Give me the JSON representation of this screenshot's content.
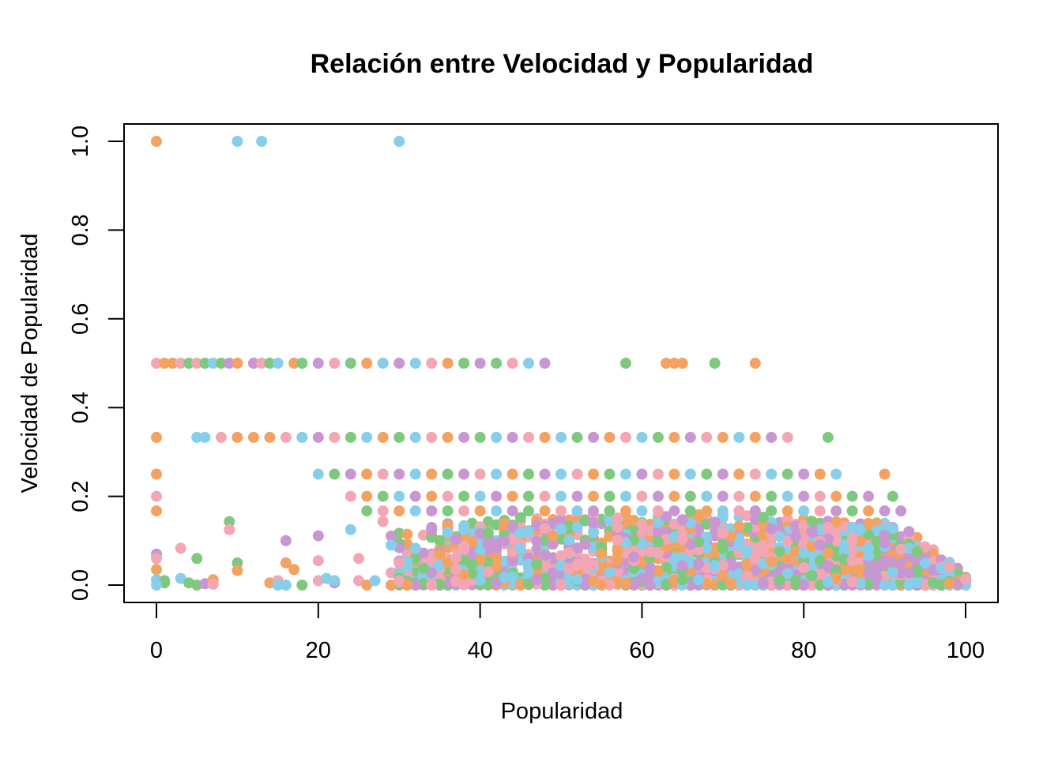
{
  "chart_data": {
    "type": "scatter",
    "title": "Relación entre Velocidad y Popularidad",
    "xlabel": "Popularidad",
    "ylabel": "Velocidad de Popularidad",
    "xlim": [
      0,
      100
    ],
    "ylim": [
      0,
      1.0
    ],
    "x_ticks": [
      "0",
      "20",
      "40",
      "60",
      "80",
      "100"
    ],
    "y_ticks": [
      "0.0",
      "0.2",
      "0.4",
      "0.6",
      "0.8",
      "1.0"
    ],
    "grid": false,
    "legend": "none",
    "colors": [
      "#F4A261",
      "#87CEEB",
      "#7FC97F",
      "#C896D2",
      "#F4A6B4"
    ],
    "points": [
      {
        "x": 0,
        "y": 1.0,
        "c": 0
      },
      {
        "x": 10,
        "y": 1.0,
        "c": 1
      },
      {
        "x": 13,
        "y": 1.0,
        "c": 1
      },
      {
        "x": 30,
        "y": 1.0,
        "c": 1
      },
      {
        "x": 0,
        "y": 0.5,
        "c": 4
      },
      {
        "x": 1,
        "y": 0.5,
        "c": 0
      },
      {
        "x": 2,
        "y": 0.5,
        "c": 0
      },
      {
        "x": 3,
        "y": 0.5,
        "c": 4
      },
      {
        "x": 4,
        "y": 0.5,
        "c": 2
      },
      {
        "x": 5,
        "y": 0.5,
        "c": 4
      },
      {
        "x": 6,
        "y": 0.5,
        "c": 2
      },
      {
        "x": 7,
        "y": 0.5,
        "c": 1
      },
      {
        "x": 8,
        "y": 0.5,
        "c": 2
      },
      {
        "x": 9,
        "y": 0.5,
        "c": 3
      },
      {
        "x": 10,
        "y": 0.5,
        "c": 0
      },
      {
        "x": 12,
        "y": 0.5,
        "c": 3
      },
      {
        "x": 13,
        "y": 0.5,
        "c": 4
      },
      {
        "x": 14,
        "y": 0.5,
        "c": 2
      },
      {
        "x": 15,
        "y": 0.5,
        "c": 1
      },
      {
        "x": 17,
        "y": 0.5,
        "c": 0
      },
      {
        "x": 18,
        "y": 0.5,
        "c": 2
      },
      {
        "x": 20,
        "y": 0.5,
        "c": 3
      },
      {
        "x": 22,
        "y": 0.5,
        "c": 4
      },
      {
        "x": 24,
        "y": 0.5,
        "c": 2
      },
      {
        "x": 26,
        "y": 0.5,
        "c": 0
      },
      {
        "x": 28,
        "y": 0.5,
        "c": 1
      },
      {
        "x": 30,
        "y": 0.5,
        "c": 3
      },
      {
        "x": 32,
        "y": 0.5,
        "c": 1
      },
      {
        "x": 34,
        "y": 0.5,
        "c": 4
      },
      {
        "x": 36,
        "y": 0.5,
        "c": 0
      },
      {
        "x": 38,
        "y": 0.5,
        "c": 2
      },
      {
        "x": 40,
        "y": 0.5,
        "c": 3
      },
      {
        "x": 42,
        "y": 0.5,
        "c": 2
      },
      {
        "x": 44,
        "y": 0.5,
        "c": 4
      },
      {
        "x": 46,
        "y": 0.5,
        "c": 1
      },
      {
        "x": 48,
        "y": 0.5,
        "c": 3
      },
      {
        "x": 58,
        "y": 0.5,
        "c": 2
      },
      {
        "x": 63,
        "y": 0.5,
        "c": 0
      },
      {
        "x": 64,
        "y": 0.5,
        "c": 0
      },
      {
        "x": 65,
        "y": 0.5,
        "c": 0
      },
      {
        "x": 69,
        "y": 0.5,
        "c": 2
      },
      {
        "x": 74,
        "y": 0.5,
        "c": 0
      },
      {
        "x": 0,
        "y": 0.333,
        "c": 0
      },
      {
        "x": 5,
        "y": 0.333,
        "c": 1
      },
      {
        "x": 6,
        "y": 0.333,
        "c": 1
      },
      {
        "x": 8,
        "y": 0.333,
        "c": 4
      },
      {
        "x": 10,
        "y": 0.333,
        "c": 0
      },
      {
        "x": 12,
        "y": 0.333,
        "c": 0
      },
      {
        "x": 14,
        "y": 0.333,
        "c": 0
      },
      {
        "x": 16,
        "y": 0.333,
        "c": 4
      },
      {
        "x": 18,
        "y": 0.333,
        "c": 1
      },
      {
        "x": 20,
        "y": 0.333,
        "c": 3
      },
      {
        "x": 22,
        "y": 0.333,
        "c": 4
      },
      {
        "x": 24,
        "y": 0.333,
        "c": 2
      },
      {
        "x": 26,
        "y": 0.333,
        "c": 1
      },
      {
        "x": 28,
        "y": 0.333,
        "c": 0
      },
      {
        "x": 30,
        "y": 0.333,
        "c": 2
      },
      {
        "x": 32,
        "y": 0.333,
        "c": 1
      },
      {
        "x": 34,
        "y": 0.333,
        "c": 4
      },
      {
        "x": 36,
        "y": 0.333,
        "c": 0
      },
      {
        "x": 38,
        "y": 0.333,
        "c": 3
      },
      {
        "x": 40,
        "y": 0.333,
        "c": 2
      },
      {
        "x": 42,
        "y": 0.333,
        "c": 1
      },
      {
        "x": 44,
        "y": 0.333,
        "c": 3
      },
      {
        "x": 46,
        "y": 0.333,
        "c": 4
      },
      {
        "x": 48,
        "y": 0.333,
        "c": 0
      },
      {
        "x": 50,
        "y": 0.333,
        "c": 1
      },
      {
        "x": 52,
        "y": 0.333,
        "c": 2
      },
      {
        "x": 54,
        "y": 0.333,
        "c": 3
      },
      {
        "x": 56,
        "y": 0.333,
        "c": 0
      },
      {
        "x": 58,
        "y": 0.333,
        "c": 4
      },
      {
        "x": 60,
        "y": 0.333,
        "c": 1
      },
      {
        "x": 62,
        "y": 0.333,
        "c": 2
      },
      {
        "x": 64,
        "y": 0.333,
        "c": 0
      },
      {
        "x": 66,
        "y": 0.333,
        "c": 3
      },
      {
        "x": 68,
        "y": 0.333,
        "c": 4
      },
      {
        "x": 70,
        "y": 0.333,
        "c": 0
      },
      {
        "x": 72,
        "y": 0.333,
        "c": 1
      },
      {
        "x": 74,
        "y": 0.333,
        "c": 0
      },
      {
        "x": 76,
        "y": 0.333,
        "c": 3
      },
      {
        "x": 78,
        "y": 0.333,
        "c": 4
      },
      {
        "x": 83,
        "y": 0.333,
        "c": 2
      },
      {
        "x": 0,
        "y": 0.25,
        "c": 0
      },
      {
        "x": 20,
        "y": 0.25,
        "c": 1
      },
      {
        "x": 22,
        "y": 0.25,
        "c": 2
      },
      {
        "x": 24,
        "y": 0.25,
        "c": 3
      },
      {
        "x": 26,
        "y": 0.25,
        "c": 0
      },
      {
        "x": 28,
        "y": 0.25,
        "c": 4
      },
      {
        "x": 30,
        "y": 0.25,
        "c": 3
      },
      {
        "x": 32,
        "y": 0.25,
        "c": 1
      },
      {
        "x": 34,
        "y": 0.25,
        "c": 0
      },
      {
        "x": 36,
        "y": 0.25,
        "c": 2
      },
      {
        "x": 38,
        "y": 0.25,
        "c": 3
      },
      {
        "x": 40,
        "y": 0.25,
        "c": 4
      },
      {
        "x": 42,
        "y": 0.25,
        "c": 1
      },
      {
        "x": 44,
        "y": 0.25,
        "c": 0
      },
      {
        "x": 46,
        "y": 0.25,
        "c": 2
      },
      {
        "x": 48,
        "y": 0.25,
        "c": 3
      },
      {
        "x": 50,
        "y": 0.25,
        "c": 1
      },
      {
        "x": 52,
        "y": 0.25,
        "c": 4
      },
      {
        "x": 54,
        "y": 0.25,
        "c": 0
      },
      {
        "x": 56,
        "y": 0.25,
        "c": 2
      },
      {
        "x": 58,
        "y": 0.25,
        "c": 1
      },
      {
        "x": 60,
        "y": 0.25,
        "c": 3
      },
      {
        "x": 62,
        "y": 0.25,
        "c": 4
      },
      {
        "x": 64,
        "y": 0.25,
        "c": 0
      },
      {
        "x": 66,
        "y": 0.25,
        "c": 1
      },
      {
        "x": 68,
        "y": 0.25,
        "c": 2
      },
      {
        "x": 70,
        "y": 0.25,
        "c": 3
      },
      {
        "x": 72,
        "y": 0.25,
        "c": 0
      },
      {
        "x": 74,
        "y": 0.25,
        "c": 4
      },
      {
        "x": 76,
        "y": 0.25,
        "c": 1
      },
      {
        "x": 78,
        "y": 0.25,
        "c": 2
      },
      {
        "x": 80,
        "y": 0.25,
        "c": 3
      },
      {
        "x": 82,
        "y": 0.25,
        "c": 0
      },
      {
        "x": 84,
        "y": 0.25,
        "c": 1
      },
      {
        "x": 90,
        "y": 0.25,
        "c": 0
      },
      {
        "x": 0,
        "y": 0.2,
        "c": 4
      },
      {
        "x": 24,
        "y": 0.2,
        "c": 4
      },
      {
        "x": 26,
        "y": 0.2,
        "c": 0
      },
      {
        "x": 28,
        "y": 0.2,
        "c": 2
      },
      {
        "x": 30,
        "y": 0.2,
        "c": 1
      },
      {
        "x": 32,
        "y": 0.2,
        "c": 3
      },
      {
        "x": 34,
        "y": 0.2,
        "c": 0
      },
      {
        "x": 36,
        "y": 0.2,
        "c": 4
      },
      {
        "x": 38,
        "y": 0.2,
        "c": 2
      },
      {
        "x": 40,
        "y": 0.2,
        "c": 1
      },
      {
        "x": 42,
        "y": 0.2,
        "c": 3
      },
      {
        "x": 44,
        "y": 0.2,
        "c": 0
      },
      {
        "x": 46,
        "y": 0.2,
        "c": 2
      },
      {
        "x": 48,
        "y": 0.2,
        "c": 4
      },
      {
        "x": 50,
        "y": 0.2,
        "c": 1
      },
      {
        "x": 52,
        "y": 0.2,
        "c": 3
      },
      {
        "x": 54,
        "y": 0.2,
        "c": 0
      },
      {
        "x": 56,
        "y": 0.2,
        "c": 2
      },
      {
        "x": 58,
        "y": 0.2,
        "c": 1
      },
      {
        "x": 60,
        "y": 0.2,
        "c": 4
      },
      {
        "x": 62,
        "y": 0.2,
        "c": 3
      },
      {
        "x": 64,
        "y": 0.2,
        "c": 0
      },
      {
        "x": 66,
        "y": 0.2,
        "c": 2
      },
      {
        "x": 68,
        "y": 0.2,
        "c": 1
      },
      {
        "x": 70,
        "y": 0.2,
        "c": 3
      },
      {
        "x": 72,
        "y": 0.2,
        "c": 4
      },
      {
        "x": 74,
        "y": 0.2,
        "c": 0
      },
      {
        "x": 76,
        "y": 0.2,
        "c": 2
      },
      {
        "x": 78,
        "y": 0.2,
        "c": 1
      },
      {
        "x": 80,
        "y": 0.2,
        "c": 3
      },
      {
        "x": 82,
        "y": 0.2,
        "c": 4
      },
      {
        "x": 84,
        "y": 0.2,
        "c": 0
      },
      {
        "x": 86,
        "y": 0.2,
        "c": 2
      },
      {
        "x": 88,
        "y": 0.2,
        "c": 3
      },
      {
        "x": 91,
        "y": 0.2,
        "c": 2
      },
      {
        "x": 0,
        "y": 0.167,
        "c": 0
      },
      {
        "x": 26,
        "y": 0.167,
        "c": 2
      },
      {
        "x": 28,
        "y": 0.167,
        "c": 4
      },
      {
        "x": 30,
        "y": 0.167,
        "c": 0
      },
      {
        "x": 32,
        "y": 0.167,
        "c": 1
      },
      {
        "x": 34,
        "y": 0.167,
        "c": 3
      },
      {
        "x": 36,
        "y": 0.167,
        "c": 2
      },
      {
        "x": 38,
        "y": 0.167,
        "c": 4
      },
      {
        "x": 40,
        "y": 0.167,
        "c": 0
      },
      {
        "x": 42,
        "y": 0.167,
        "c": 1
      },
      {
        "x": 44,
        "y": 0.167,
        "c": 3
      },
      {
        "x": 46,
        "y": 0.167,
        "c": 2
      },
      {
        "x": 48,
        "y": 0.167,
        "c": 0
      },
      {
        "x": 50,
        "y": 0.167,
        "c": 4
      },
      {
        "x": 52,
        "y": 0.167,
        "c": 1
      },
      {
        "x": 54,
        "y": 0.167,
        "c": 3
      },
      {
        "x": 56,
        "y": 0.167,
        "c": 2
      },
      {
        "x": 58,
        "y": 0.167,
        "c": 0
      },
      {
        "x": 60,
        "y": 0.167,
        "c": 1
      },
      {
        "x": 62,
        "y": 0.167,
        "c": 4
      },
      {
        "x": 64,
        "y": 0.167,
        "c": 3
      },
      {
        "x": 66,
        "y": 0.167,
        "c": 2
      },
      {
        "x": 68,
        "y": 0.167,
        "c": 0
      },
      {
        "x": 70,
        "y": 0.167,
        "c": 1
      },
      {
        "x": 72,
        "y": 0.167,
        "c": 4
      },
      {
        "x": 74,
        "y": 0.167,
        "c": 3
      },
      {
        "x": 76,
        "y": 0.167,
        "c": 2
      },
      {
        "x": 78,
        "y": 0.167,
        "c": 0
      },
      {
        "x": 80,
        "y": 0.167,
        "c": 1
      },
      {
        "x": 82,
        "y": 0.167,
        "c": 4
      },
      {
        "x": 84,
        "y": 0.167,
        "c": 3
      },
      {
        "x": 86,
        "y": 0.167,
        "c": 2
      },
      {
        "x": 88,
        "y": 0.167,
        "c": 0
      },
      {
        "x": 90,
        "y": 0.167,
        "c": 3
      },
      {
        "x": 92,
        "y": 0.167,
        "c": 3
      },
      {
        "x": 9,
        "y": 0.143,
        "c": 2
      },
      {
        "x": 9,
        "y": 0.125,
        "c": 4
      },
      {
        "x": 24,
        "y": 0.125,
        "c": 1
      },
      {
        "x": 28,
        "y": 0.143,
        "c": 4
      },
      {
        "x": 3,
        "y": 0.083,
        "c": 4
      },
      {
        "x": 5,
        "y": 0.06,
        "c": 2
      },
      {
        "x": 16,
        "y": 0.1,
        "c": 3
      },
      {
        "x": 20,
        "y": 0.111,
        "c": 3
      },
      {
        "x": 10,
        "y": 0.05,
        "c": 2
      },
      {
        "x": 10,
        "y": 0.033,
        "c": 0
      },
      {
        "x": 16,
        "y": 0.05,
        "c": 0
      },
      {
        "x": 17,
        "y": 0.035,
        "c": 0
      },
      {
        "x": 20,
        "y": 0.055,
        "c": 4
      },
      {
        "x": 25,
        "y": 0.06,
        "c": 4
      },
      {
        "x": 29,
        "y": 0.09,
        "c": 1
      },
      {
        "x": 30,
        "y": 0.05,
        "c": 4
      },
      {
        "x": 0,
        "y": 0.07,
        "c": 3
      },
      {
        "x": 0,
        "y": 0.06,
        "c": 4
      },
      {
        "x": 0,
        "y": 0.035,
        "c": 0
      },
      {
        "x": 0,
        "y": 0.012,
        "c": 1
      },
      {
        "x": 1,
        "y": 0.005,
        "c": 2
      },
      {
        "x": 1,
        "y": 0.01,
        "c": 2
      },
      {
        "x": 0,
        "y": 0.0,
        "c": 1
      },
      {
        "x": 3,
        "y": 0.015,
        "c": 1
      },
      {
        "x": 4,
        "y": 0.005,
        "c": 2
      },
      {
        "x": 5,
        "y": 0.0,
        "c": 2
      },
      {
        "x": 6,
        "y": 0.003,
        "c": 3
      },
      {
        "x": 7,
        "y": 0.012,
        "c": 0
      },
      {
        "x": 7,
        "y": 0.002,
        "c": 4
      },
      {
        "x": 14,
        "y": 0.005,
        "c": 0
      },
      {
        "x": 15,
        "y": 0.01,
        "c": 4
      },
      {
        "x": 15,
        "y": 0.0,
        "c": 1
      },
      {
        "x": 16,
        "y": 0.0,
        "c": 1
      },
      {
        "x": 18,
        "y": 0.0,
        "c": 2
      },
      {
        "x": 20,
        "y": 0.01,
        "c": 4
      },
      {
        "x": 21,
        "y": 0.015,
        "c": 1
      },
      {
        "x": 22,
        "y": 0.005,
        "c": 3
      },
      {
        "x": 22,
        "y": 0.01,
        "c": 1
      },
      {
        "x": 25,
        "y": 0.01,
        "c": 4
      },
      {
        "x": 26,
        "y": 0.0,
        "c": 0
      },
      {
        "x": 27,
        "y": 0.01,
        "c": 1
      },
      {
        "x": 29,
        "y": 0.0,
        "c": 0
      },
      {
        "x": 30,
        "y": 0.01,
        "c": 4
      },
      {
        "x": 31,
        "y": 0.0,
        "c": 0
      }
    ],
    "cloud": {
      "x_range": [
        29,
        100
      ],
      "y_max_by_x": [
        [
          30,
          0.13
        ],
        [
          40,
          0.15
        ],
        [
          50,
          0.16
        ],
        [
          60,
          0.16
        ],
        [
          70,
          0.16
        ],
        [
          80,
          0.15
        ],
        [
          90,
          0.14
        ],
        [
          93,
          0.12
        ],
        [
          96,
          0.08
        ],
        [
          100,
          0.02
        ]
      ],
      "n": 2600
    }
  }
}
